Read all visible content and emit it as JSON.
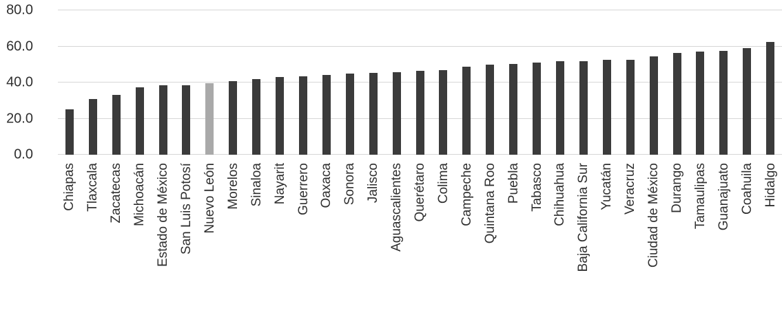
{
  "chart_data": {
    "type": "bar",
    "title": "",
    "xlabel": "",
    "ylabel": "",
    "categories": [
      "Chiapas",
      "Tlaxcala",
      "Zacatecas",
      "Michoacán",
      "Estado de México",
      "San Luis Potosí",
      "Nuevo León",
      "Morelos",
      "Sinaloa",
      "Nayarit",
      "Guerrero",
      "Oaxaca",
      "Sonora",
      "Jalisco",
      "Aguascalientes",
      "Querétaro",
      "Colima",
      "Campeche",
      "Quintana Roo",
      "Puebla",
      "Tabasco",
      "Chihuahua",
      "Baja California Sur",
      "Yucatán",
      "Veracruz",
      "Ciudad de México",
      "Durango",
      "Tamaulipas",
      "Guanajuato",
      "Coahuila",
      "Hidalgo"
    ],
    "values": [
      25.0,
      30.8,
      33.0,
      37.2,
      38.5,
      38.6,
      39.5,
      40.9,
      41.8,
      43.0,
      43.6,
      44.3,
      45.0,
      45.5,
      45.8,
      46.5,
      46.8,
      48.6,
      49.8,
      50.4,
      51.0,
      51.8,
      52.0,
      52.4,
      52.6,
      54.3,
      56.5,
      57.0,
      57.6,
      59.0,
      62.4
    ],
    "highlight_category": "Nuevo León",
    "highlight_color": "#a9a9a9",
    "bar_color": "#3b3b3b",
    "ylim": [
      0,
      80
    ],
    "ytick_labels": [
      "0.0",
      "20.0",
      "40.0",
      "60.0",
      "80.0"
    ],
    "ytick_values": [
      0,
      20,
      40,
      60,
      80
    ],
    "grid": true,
    "gridline_color": "#d6d6d6",
    "legend_position": "none"
  }
}
